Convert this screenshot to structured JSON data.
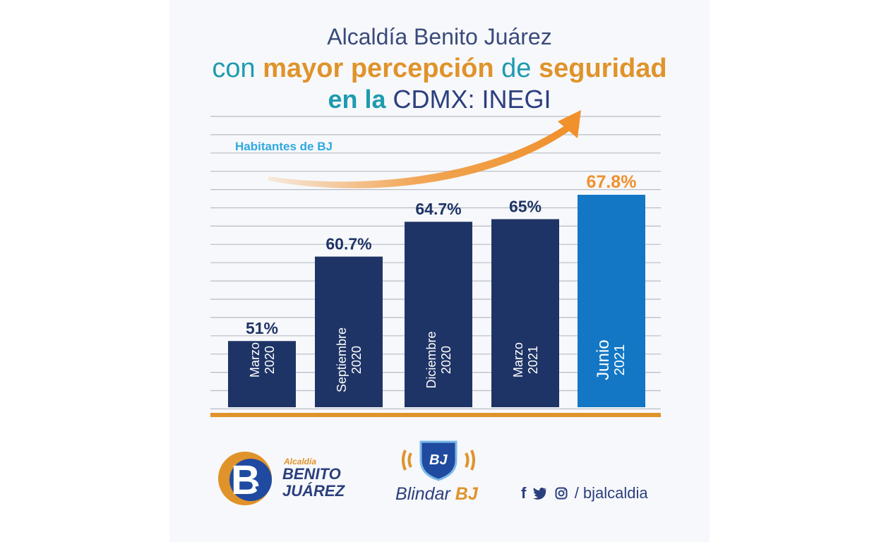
{
  "header": {
    "line1": "Alcaldía Benito Juárez",
    "line2_a": "con",
    "line2_b": "mayor percepción",
    "line2_c": "de",
    "line2_d": "seguridad",
    "line3_a": "en la",
    "line3_b": "CDMX: INEGI"
  },
  "chart_data": {
    "type": "bar",
    "series_label": "Habitantes de BJ",
    "categories": [
      [
        "Marzo",
        "2020"
      ],
      [
        "Septiembre",
        "2020"
      ],
      [
        "Diciembre",
        "2020"
      ],
      [
        "Marzo",
        "2021"
      ],
      [
        "Junio",
        "2021"
      ]
    ],
    "values": [
      51,
      60.7,
      64.7,
      65,
      67.8
    ],
    "value_labels": [
      "51%",
      "60.7%",
      "64.7%",
      "65%",
      "67.8%"
    ],
    "highlight_index": 4,
    "colors": {
      "bar": "#1f3466",
      "highlight": "#1377c5",
      "label": "#1f3466",
      "highlight_label": "#f0912c",
      "baseline": "#e0932a",
      "grid": "#b8bcc6",
      "arrow": "#f0912c",
      "series_label": "#2fa8e0"
    },
    "grid": true
  },
  "footer": {
    "alcaldia_small": "Alcaldía",
    "alcaldia_line1": "BENITO",
    "alcaldia_line2": "JUÁREZ",
    "shield_text": "BJ",
    "blindar_a": "Blindar",
    "blindar_b": "BJ",
    "social_handle": "/ bjalcaldia",
    "social_icons": [
      "facebook-icon",
      "twitter-icon",
      "instagram-icon"
    ]
  }
}
